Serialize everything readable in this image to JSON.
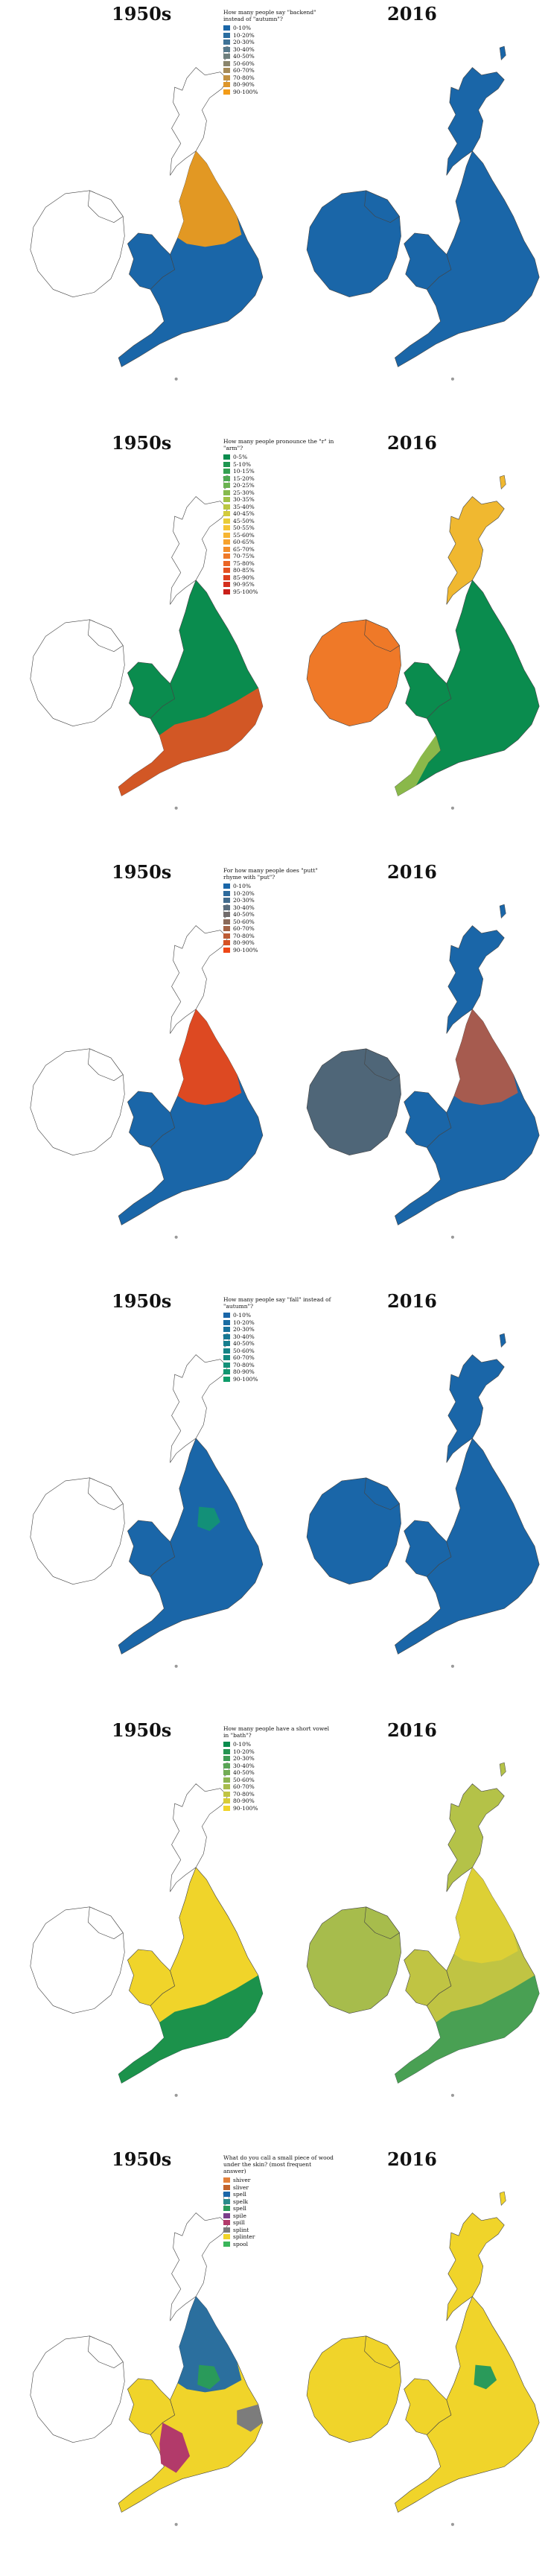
{
  "panels": [
    {
      "era_left": "1950s",
      "era_right": "2016",
      "question": "How many people say \"backend\" instead of \"autumn\"?",
      "legend": [
        {
          "label": "0-10%",
          "color": "#1a66a8"
        },
        {
          "label": "10-20%",
          "color": "#2a6da0"
        },
        {
          "label": "20-30%",
          "color": "#3f7397"
        },
        {
          "label": "30-40%",
          "color": "#57798b"
        },
        {
          "label": "40-50%",
          "color": "#6f7f7d"
        },
        {
          "label": "50-60%",
          "color": "#8a856c"
        },
        {
          "label": "60-70%",
          "color": "#a68b58"
        },
        {
          "label": "70-80%",
          "color": "#c29142"
        },
        {
          "label": "80-90%",
          "color": "#dd962b"
        },
        {
          "label": "90-100%",
          "color": "#f39c18"
        }
      ],
      "map_left": {
        "base": "#ffffff",
        "england": "#1a66a8",
        "north": "#f39c18"
      },
      "map_right": {
        "base": "#1a66a8"
      }
    },
    {
      "era_left": "1950s",
      "era_right": "2016",
      "question": "How many people pronounce the \"r\" in \"arm\"?",
      "legend": [
        {
          "label": "0-5%",
          "color": "#0a8c4e"
        },
        {
          "label": "5-10%",
          "color": "#1e9650"
        },
        {
          "label": "10-15%",
          "color": "#35a052"
        },
        {
          "label": "15-20%",
          "color": "#4fa952"
        },
        {
          "label": "20-25%",
          "color": "#6ab251"
        },
        {
          "label": "25-30%",
          "color": "#86ba4d"
        },
        {
          "label": "30-35%",
          "color": "#a1c148"
        },
        {
          "label": "35-40%",
          "color": "#bbc742"
        },
        {
          "label": "40-45%",
          "color": "#d3cb3c"
        },
        {
          "label": "45-50%",
          "color": "#e8cc37"
        },
        {
          "label": "50-55%",
          "color": "#f5c534"
        },
        {
          "label": "55-60%",
          "color": "#f7b531"
        },
        {
          "label": "60-65%",
          "color": "#f6a22e"
        },
        {
          "label": "65-70%",
          "color": "#f38e2b"
        },
        {
          "label": "70-75%",
          "color": "#ef7928"
        },
        {
          "label": "75-80%",
          "color": "#ea6525"
        },
        {
          "label": "80-85%",
          "color": "#e45222"
        },
        {
          "label": "85-90%",
          "color": "#dd3f1f"
        },
        {
          "label": "90-95%",
          "color": "#d42e1c"
        },
        {
          "label": "95-100%",
          "color": "#c91f1a"
        }
      ],
      "map_left": {
        "base": "#ffffff",
        "england": "#0a8c4e",
        "south": "#e45222"
      },
      "map_right": {
        "base": "#0a8c4e",
        "scotland": "#f0b830",
        "ireland": "#ef7928",
        "southwest": "#8ab84a"
      }
    },
    {
      "era_left": "1950s",
      "era_right": "2016",
      "question": "For how many people does \"putt\" rhyme with \"put\"?",
      "legend": [
        {
          "label": "0-10%",
          "color": "#1a66a8"
        },
        {
          "label": "10-20%",
          "color": "#2d6a9c"
        },
        {
          "label": "20-30%",
          "color": "#436c8d"
        },
        {
          "label": "30-40%",
          "color": "#5a6d7d"
        },
        {
          "label": "40-50%",
          "color": "#716c6c"
        },
        {
          "label": "50-60%",
          "color": "#8a6a5a"
        },
        {
          "label": "60-70%",
          "color": "#a46447"
        },
        {
          "label": "70-80%",
          "color": "#bd5c35"
        },
        {
          "label": "80-90%",
          "color": "#d65224"
        },
        {
          "label": "90-100%",
          "color": "#ee4717"
        }
      ],
      "map_left": {
        "base": "#ffffff",
        "england": "#1a66a8",
        "north": "#ee4717"
      },
      "map_right": {
        "base": "#1a66a8",
        "ireland": "#4f6678",
        "north": "#b25a48"
      }
    },
    {
      "era_left": "1950s",
      "era_right": "2016",
      "question": "How many people say \"fall\" instead of \"autumn\"?",
      "legend": [
        {
          "label": "0-10%",
          "color": "#1a66a8"
        },
        {
          "label": "10-20%",
          "color": "#1a6ca2"
        },
        {
          "label": "20-30%",
          "color": "#19729b"
        },
        {
          "label": "30-40%",
          "color": "#187894"
        },
        {
          "label": "40-50%",
          "color": "#177e8d"
        },
        {
          "label": "50-60%",
          "color": "#168486"
        },
        {
          "label": "60-70%",
          "color": "#148a7f"
        },
        {
          "label": "70-80%",
          "color": "#139078"
        },
        {
          "label": "80-90%",
          "color": "#129671"
        },
        {
          "label": "90-100%",
          "color": "#0f9c6a"
        }
      ],
      "map_left": {
        "base": "#ffffff",
        "england": "#1a66a8",
        "patch": "#139078"
      },
      "map_right": {
        "base": "#1a66a8"
      }
    },
    {
      "era_left": "1950s",
      "era_right": "2016",
      "question": "How many people have a short vowel in \"bath\"?",
      "legend": [
        {
          "label": "0-10%",
          "color": "#0a8c4e"
        },
        {
          "label": "10-20%",
          "color": "#259452"
        },
        {
          "label": "20-30%",
          "color": "#3f9c55"
        },
        {
          "label": "30-40%",
          "color": "#59a456"
        },
        {
          "label": "40-50%",
          "color": "#73ac55"
        },
        {
          "label": "50-60%",
          "color": "#8db452"
        },
        {
          "label": "60-70%",
          "color": "#a7bc4c"
        },
        {
          "label": "70-80%",
          "color": "#c0c443"
        },
        {
          "label": "80-90%",
          "color": "#d8cc37"
        },
        {
          "label": "90-100%",
          "color": "#f0d42a"
        }
      ],
      "map_left": {
        "base": "#ffffff",
        "england": "#f0d42a",
        "south": "#0a8c4e"
      },
      "map_right": {
        "base": "#c0c443",
        "scotland": "#b4c248",
        "ireland": "#a7bc4c",
        "south": "#3f9c55",
        "north": "#e0d034"
      }
    },
    {
      "era_left": "1950s",
      "era_right": "2016",
      "question": "What do you call a small piece of wood under the skin? (most frequent answer)",
      "legend": [
        {
          "label": "shiver",
          "color": "#e3813a"
        },
        {
          "label": "sliver",
          "color": "#c2642c"
        },
        {
          "label": "spell",
          "color": "#1a66a8"
        },
        {
          "label": "spelk",
          "color": "#2a8a8a"
        },
        {
          "label": "spell",
          "color": "#2a9a5a"
        },
        {
          "label": "spile",
          "color": "#7b3f8a"
        },
        {
          "label": "spill",
          "color": "#b23a6a"
        },
        {
          "label": "splint",
          "color": "#7c7c7c"
        },
        {
          "label": "splinter",
          "color": "#f0d42a"
        },
        {
          "label": "spool",
          "color": "#3ab55a"
        }
      ],
      "map_left": {
        "base": "#ffffff",
        "england": "#f0d42a",
        "north": "#1a66a8",
        "west": "#b23a6a",
        "east": "#7c7c7c",
        "patch": "#2a9a5a"
      },
      "map_right": {
        "base": "#f0d42a",
        "patch": "#2a9a5a"
      }
    }
  ]
}
